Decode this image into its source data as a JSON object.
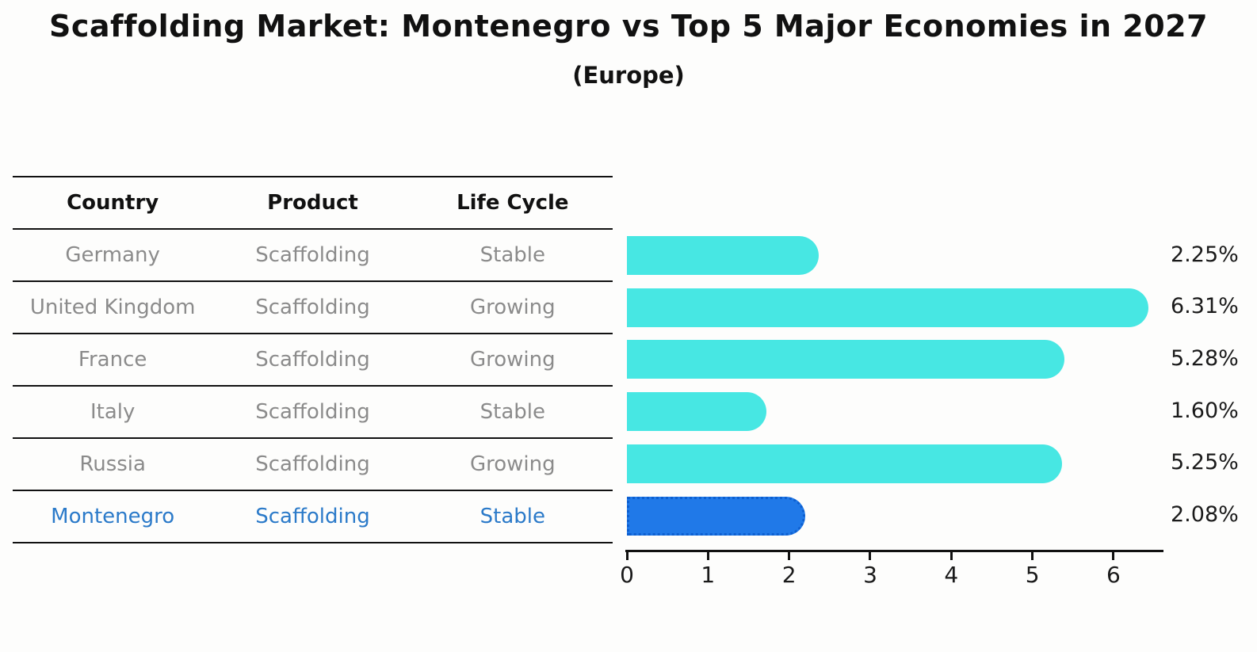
{
  "chart_data": {
    "type": "bar",
    "orientation": "horizontal",
    "title": "Scaffolding Market: Montenegro vs Top 5 Major Economies in 2027",
    "subtitle": "(Europe)",
    "categories": [
      "Germany",
      "United Kingdom",
      "France",
      "Italy",
      "Russia",
      "Montenegro"
    ],
    "values": [
      2.25,
      6.31,
      5.28,
      1.6,
      5.25,
      2.08
    ],
    "value_labels": [
      "2.25%",
      "6.31%",
      "5.28%",
      "1.60%",
      "5.25%",
      "2.08%"
    ],
    "highlight_index": 5,
    "x_ticks": [
      "0",
      "1",
      "2",
      "3",
      "4",
      "5",
      "6"
    ],
    "xlim": [
      0,
      6.6
    ],
    "grid": "off",
    "legend": "none",
    "bar_color": "#47e7e3",
    "highlight_bar_color": "#2079e8",
    "highlight_border_color": "#0d5fd0"
  },
  "table": {
    "headers": [
      "Country",
      "Product",
      "Life Cycle"
    ],
    "rows": [
      {
        "country": "Germany",
        "product": "Scaffolding",
        "life_cycle": "Stable"
      },
      {
        "country": "United Kingdom",
        "product": "Scaffolding",
        "life_cycle": "Growing"
      },
      {
        "country": "France",
        "product": "Scaffolding",
        "life_cycle": "Growing"
      },
      {
        "country": "Italy",
        "product": "Scaffolding",
        "life_cycle": "Stable"
      },
      {
        "country": "Russia",
        "product": "Scaffolding",
        "life_cycle": "Growing"
      },
      {
        "country": "Montenegro",
        "product": "Scaffolding",
        "life_cycle": "Stable"
      }
    ]
  },
  "colors": {
    "gray_text": "#8b8b8b",
    "accent_text": "#2b7ac9",
    "axis": "#111111"
  }
}
